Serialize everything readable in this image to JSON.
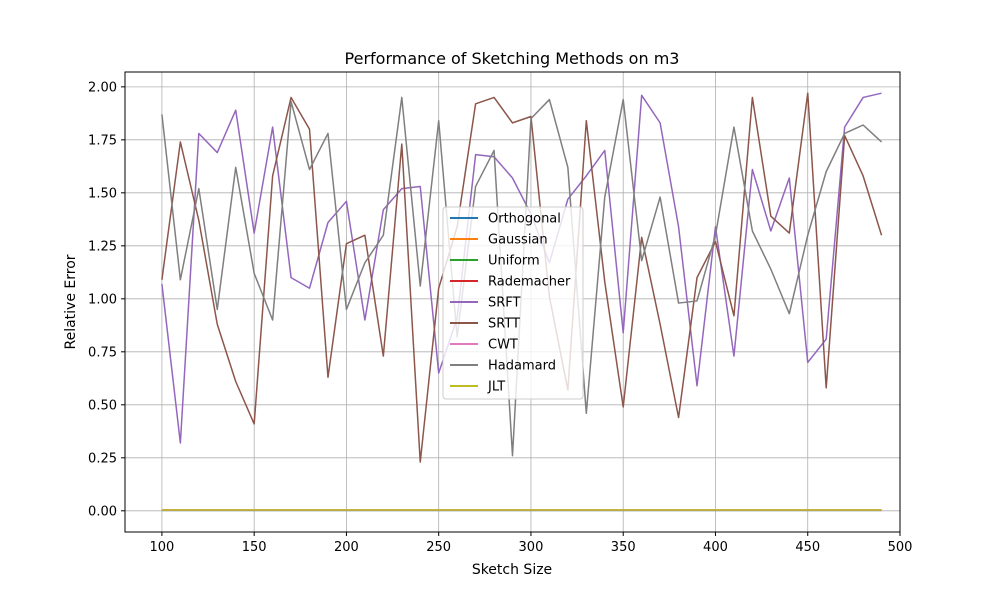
{
  "chart_data": {
    "type": "line",
    "title": "Performance of Sketching Methods on m3",
    "xlabel": "Sketch Size",
    "ylabel": "Relative Error",
    "xlim": [
      80,
      500
    ],
    "ylim": [
      -0.1,
      2.07
    ],
    "xticks": [
      100,
      150,
      200,
      250,
      300,
      350,
      400,
      450,
      500
    ],
    "yticks": [
      0.0,
      0.25,
      0.5,
      0.75,
      1.0,
      1.25,
      1.5,
      1.75,
      2.0
    ],
    "xtick_labels": [
      "100",
      "150",
      "200",
      "250",
      "300",
      "350",
      "400",
      "450",
      "500"
    ],
    "ytick_labels": [
      "0.00",
      "0.25",
      "0.50",
      "0.75",
      "1.00",
      "1.25",
      "1.50",
      "1.75",
      "2.00"
    ],
    "grid": true,
    "legend_position": "center",
    "x": [
      100,
      110,
      120,
      130,
      140,
      150,
      160,
      170,
      180,
      190,
      200,
      210,
      220,
      230,
      240,
      250,
      260,
      270,
      280,
      290,
      300,
      310,
      320,
      330,
      340,
      350,
      360,
      370,
      380,
      390,
      400,
      410,
      420,
      430,
      440,
      450,
      460,
      470,
      480,
      490
    ],
    "series": [
      {
        "name": "Orthogonal",
        "color": "#1f77b4",
        "values": [
          0.002,
          0.002,
          0.002,
          0.002,
          0.002,
          0.002,
          0.002,
          0.002,
          0.002,
          0.002,
          0.002,
          0.002,
          0.002,
          0.002,
          0.002,
          0.002,
          0.002,
          0.002,
          0.002,
          0.002,
          0.002,
          0.002,
          0.002,
          0.002,
          0.002,
          0.002,
          0.002,
          0.002,
          0.002,
          0.002,
          0.002,
          0.002,
          0.002,
          0.002,
          0.002,
          0.002,
          0.002,
          0.002,
          0.002,
          0.002
        ]
      },
      {
        "name": "Gaussian",
        "color": "#ff7f0e",
        "values": [
          0.003,
          0.003,
          0.003,
          0.003,
          0.003,
          0.003,
          0.003,
          0.003,
          0.003,
          0.003,
          0.003,
          0.003,
          0.003,
          0.003,
          0.003,
          0.003,
          0.003,
          0.003,
          0.003,
          0.003,
          0.003,
          0.003,
          0.003,
          0.003,
          0.003,
          0.003,
          0.003,
          0.003,
          0.003,
          0.003,
          0.003,
          0.003,
          0.003,
          0.003,
          0.003,
          0.003,
          0.003,
          0.003,
          0.003,
          0.003
        ]
      },
      {
        "name": "Uniform",
        "color": "#2ca02c",
        "values": [
          0.003,
          0.003,
          0.003,
          0.003,
          0.003,
          0.003,
          0.003,
          0.003,
          0.003,
          0.003,
          0.003,
          0.003,
          0.003,
          0.003,
          0.003,
          0.003,
          0.003,
          0.003,
          0.003,
          0.003,
          0.003,
          0.003,
          0.003,
          0.003,
          0.003,
          0.003,
          0.003,
          0.003,
          0.003,
          0.003,
          0.003,
          0.003,
          0.003,
          0.003,
          0.003,
          0.003,
          0.003,
          0.003,
          0.003,
          0.003
        ]
      },
      {
        "name": "Rademacher",
        "color": "#d62728",
        "values": [
          0.003,
          0.003,
          0.003,
          0.003,
          0.003,
          0.003,
          0.003,
          0.003,
          0.003,
          0.003,
          0.003,
          0.003,
          0.003,
          0.003,
          0.003,
          0.003,
          0.003,
          0.003,
          0.003,
          0.003,
          0.003,
          0.003,
          0.003,
          0.003,
          0.003,
          0.003,
          0.003,
          0.003,
          0.003,
          0.003,
          0.003,
          0.003,
          0.003,
          0.003,
          0.003,
          0.003,
          0.003,
          0.003,
          0.003,
          0.003
        ]
      },
      {
        "name": "SRFT",
        "color": "#9467bd",
        "values": [
          1.07,
          0.32,
          1.78,
          1.69,
          1.89,
          1.31,
          1.81,
          1.1,
          1.05,
          1.36,
          1.46,
          0.9,
          1.42,
          1.52,
          1.53,
          0.65,
          0.91,
          1.68,
          1.67,
          1.57,
          1.4,
          1.17,
          1.47,
          1.58,
          1.7,
          0.84,
          1.96,
          1.83,
          1.34,
          0.59,
          1.34,
          0.73,
          1.61,
          1.32,
          1.57,
          0.7,
          0.81,
          1.81,
          1.95,
          1.97
        ]
      },
      {
        "name": "SRTT",
        "color": "#8c564b",
        "values": [
          1.09,
          1.74,
          1.37,
          0.88,
          0.61,
          0.41,
          1.58,
          1.95,
          1.8,
          0.63,
          1.26,
          1.3,
          0.73,
          1.73,
          0.23,
          1.05,
          1.34,
          1.92,
          1.95,
          1.83,
          1.86,
          1.01,
          0.57,
          1.84,
          1.08,
          0.49,
          1.29,
          0.88,
          0.44,
          1.1,
          1.27,
          0.92,
          1.95,
          1.39,
          1.31,
          1.97,
          0.58,
          1.77,
          1.58,
          1.3
        ]
      },
      {
        "name": "CWT",
        "color": "#e377c2",
        "values": [
          0.003,
          0.003,
          0.003,
          0.003,
          0.003,
          0.003,
          0.003,
          0.003,
          0.003,
          0.003,
          0.003,
          0.003,
          0.003,
          0.003,
          0.003,
          0.003,
          0.003,
          0.003,
          0.003,
          0.003,
          0.003,
          0.003,
          0.003,
          0.003,
          0.003,
          0.003,
          0.003,
          0.003,
          0.003,
          0.003,
          0.003,
          0.003,
          0.003,
          0.003,
          0.003,
          0.003,
          0.003,
          0.003,
          0.003,
          0.003
        ]
      },
      {
        "name": "Hadamard",
        "color": "#7f7f7f",
        "values": [
          1.87,
          1.09,
          1.52,
          0.95,
          1.62,
          1.12,
          0.9,
          1.93,
          1.61,
          1.78,
          0.95,
          1.17,
          1.3,
          1.95,
          1.06,
          1.84,
          0.82,
          1.53,
          1.7,
          0.26,
          1.85,
          1.94,
          1.62,
          0.46,
          1.48,
          1.94,
          1.18,
          1.48,
          0.98,
          0.99,
          1.3,
          1.81,
          1.32,
          1.14,
          0.93,
          1.3,
          1.6,
          1.78,
          1.82,
          1.74
        ]
      },
      {
        "name": "JLT",
        "color": "#bcbd22",
        "values": [
          0.004,
          0.004,
          0.004,
          0.004,
          0.004,
          0.004,
          0.004,
          0.004,
          0.004,
          0.004,
          0.004,
          0.004,
          0.004,
          0.004,
          0.004,
          0.004,
          0.004,
          0.004,
          0.004,
          0.004,
          0.004,
          0.004,
          0.004,
          0.004,
          0.004,
          0.004,
          0.004,
          0.004,
          0.004,
          0.004,
          0.004,
          0.004,
          0.004,
          0.004,
          0.004,
          0.004,
          0.004,
          0.004,
          0.004,
          0.004
        ]
      }
    ]
  }
}
